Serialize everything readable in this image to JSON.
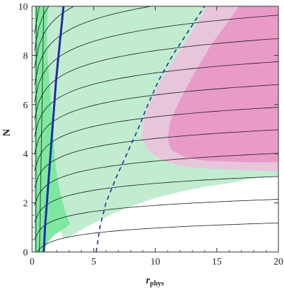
{
  "chart_data": {
    "type": "area",
    "xlabel": "r",
    "xlabel_sub": "phys",
    "ylabel": "N",
    "xlim": [
      0,
      20
    ],
    "ylim": [
      0,
      10
    ],
    "x_ticks": [
      "0",
      "5",
      "10",
      "15",
      "20"
    ],
    "y_ticks": [
      "0",
      "2",
      "4",
      "6",
      "8",
      "10"
    ],
    "grid": false,
    "colors": {
      "light_green_region": "#c2ecd0",
      "bright_green_region": "#7ee8a0",
      "light_pink_region": "#e7c6db",
      "pink_region": "#e99bc8",
      "contour_lines": "#1a1a1a",
      "solid_curve": "#1830a0",
      "dashed_curve": "#1830a0"
    },
    "regions": [
      {
        "name": "light-green-region",
        "color": "light_green_region",
        "boundary": [
          [
            0.2,
            0
          ],
          [
            0.2,
            10
          ],
          [
            14.2,
            10
          ],
          [
            14.5,
            9.6
          ],
          [
            15.2,
            9
          ],
          [
            16.6,
            8
          ],
          [
            18,
            7.2
          ],
          [
            20,
            6.3
          ],
          [
            20,
            3.1
          ],
          [
            18,
            3.0
          ],
          [
            16,
            2.8
          ],
          [
            14,
            2.65
          ],
          [
            12,
            2.45
          ],
          [
            10,
            2.2
          ],
          [
            8,
            1.85
          ],
          [
            6.5,
            1.55
          ],
          [
            5.5,
            1.3
          ],
          [
            4.7,
            1.1
          ],
          [
            4,
            0.9
          ],
          [
            3.3,
            0.7
          ],
          [
            2.7,
            0.55
          ],
          [
            2.5,
            0.6
          ],
          [
            2.2,
            1.0
          ],
          [
            2.0,
            1.5
          ],
          [
            1.8,
            2.0
          ],
          [
            1.7,
            2.6
          ],
          [
            1.6,
            3.5
          ],
          [
            1.5,
            4.5
          ],
          [
            1.3,
            6
          ],
          [
            1.1,
            7.5
          ],
          [
            0.9,
            9
          ],
          [
            0.8,
            10
          ],
          [
            0.2,
            10
          ]
        ]
      },
      {
        "name": "bright-green-region",
        "color": "bright_green_region",
        "boundary": [
          [
            0.2,
            0
          ],
          [
            0.2,
            10
          ],
          [
            1.3,
            10
          ],
          [
            1.2,
            9
          ],
          [
            1.25,
            8
          ],
          [
            1.4,
            7
          ],
          [
            1.55,
            6
          ],
          [
            1.7,
            5
          ],
          [
            1.8,
            4.2
          ],
          [
            1.9,
            3.6
          ],
          [
            2.05,
            3.0
          ],
          [
            2.3,
            2.4
          ],
          [
            2.6,
            1.8
          ],
          [
            2.9,
            1.35
          ],
          [
            3.1,
            1.15
          ],
          [
            2.6,
            0.95
          ],
          [
            1.8,
            0.7
          ],
          [
            1.2,
            0.35
          ],
          [
            0.9,
            0
          ]
        ]
      },
      {
        "name": "light-pink-region",
        "color": "light_pink_region",
        "boundary": [
          [
            14.2,
            10
          ],
          [
            20,
            10
          ],
          [
            20,
            3.3
          ],
          [
            18,
            3.3
          ],
          [
            16,
            3.35
          ],
          [
            14,
            3.4
          ],
          [
            12,
            3.5
          ],
          [
            10.5,
            3.75
          ],
          [
            9.5,
            4.1
          ],
          [
            8.9,
            4.6
          ],
          [
            9.0,
            5.3
          ],
          [
            9.5,
            6.0
          ],
          [
            10.5,
            7.0
          ],
          [
            11.5,
            7.8
          ],
          [
            12.5,
            8.6
          ],
          [
            13.5,
            9.4
          ]
        ]
      },
      {
        "name": "pink-region",
        "color": "pink_region",
        "boundary": [
          [
            16.8,
            10
          ],
          [
            20,
            10
          ],
          [
            20,
            3.65
          ],
          [
            18,
            3.65
          ],
          [
            16,
            3.68
          ],
          [
            14,
            3.72
          ],
          [
            12.5,
            3.85
          ],
          [
            11.3,
            4.15
          ],
          [
            11.0,
            4.6
          ],
          [
            11.2,
            5.3
          ],
          [
            12.0,
            6.2
          ],
          [
            13.2,
            7.3
          ],
          [
            14.5,
            8.4
          ],
          [
            15.8,
            9.3
          ]
        ]
      }
    ],
    "contour_lines": [
      {
        "y0": 0.6,
        "a": 1.0,
        "b": 0.3
      },
      {
        "y0": 1.3,
        "a": 1.0,
        "b": 0.34
      },
      {
        "y0": 2.0,
        "a": 1.0,
        "b": 0.37
      },
      {
        "y0": 2.7,
        "a": 1.0,
        "b": 0.4
      },
      {
        "y0": 3.4,
        "a": 1.0,
        "b": 0.43
      },
      {
        "y0": 4.1,
        "a": 1.0,
        "b": 0.45
      },
      {
        "y0": 4.8,
        "a": 1.0,
        "b": 0.47
      },
      {
        "y0": 5.5,
        "a": 1.0,
        "b": 0.49
      },
      {
        "y0": 6.2,
        "a": 1.0,
        "b": 0.51
      },
      {
        "y0": 6.9,
        "a": 1.0,
        "b": 0.53
      },
      {
        "y0": 7.6,
        "a": 1.0,
        "b": 0.55
      },
      {
        "y0": 8.3,
        "a": 1.0,
        "b": 0.57
      },
      {
        "y0": 9.0,
        "a": 1.0,
        "b": 0.59
      },
      {
        "y0": 9.7,
        "a": 1.0,
        "b": 0.61
      }
    ],
    "steep_lines": [
      {
        "x0": 0.3,
        "x1": 0.35
      },
      {
        "x0": 0.6,
        "x1": 0.95
      }
    ],
    "solid_curve": [
      [
        0.95,
        0
      ],
      [
        1.05,
        1
      ],
      [
        1.2,
        2
      ],
      [
        1.35,
        3
      ],
      [
        1.5,
        4
      ],
      [
        1.65,
        5
      ],
      [
        1.8,
        6
      ],
      [
        1.95,
        7
      ],
      [
        2.15,
        8
      ],
      [
        2.35,
        9
      ],
      [
        2.55,
        10
      ]
    ],
    "dashed_curve": [
      [
        5.2,
        0
      ],
      [
        5.5,
        1
      ],
      [
        6.0,
        2
      ],
      [
        6.8,
        3
      ],
      [
        7.7,
        4
      ],
      [
        8.6,
        5
      ],
      [
        9.4,
        6
      ],
      [
        10.3,
        7
      ],
      [
        11.4,
        8
      ],
      [
        12.7,
        9
      ],
      [
        14.0,
        10
      ]
    ]
  }
}
